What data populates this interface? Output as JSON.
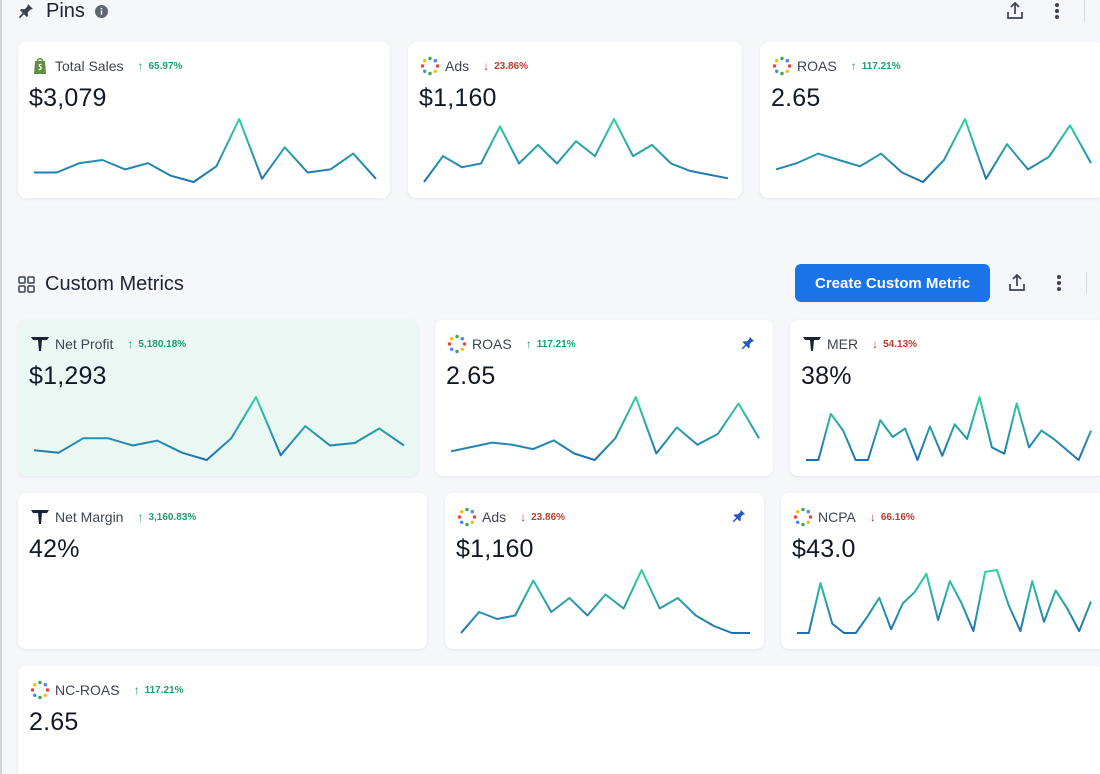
{
  "colors": {
    "accent": "#1a73e8",
    "up": "#1f9d72",
    "down": "#c0392b",
    "spark_start": "#1f6fb2",
    "spark_end": "#2fd4a0"
  },
  "pins_section": {
    "title": "Pins",
    "title_icon": "pin-icon",
    "info_icon": "info-icon",
    "toolbar": {
      "share_icon": "share-icon",
      "more_icon": "more-vertical-icon"
    }
  },
  "custom_section": {
    "title": "Custom Metrics",
    "title_icon": "grid-icon",
    "create_button": "Create Custom Metric",
    "toolbar": {
      "share_icon": "share-icon",
      "more_icon": "more-vertical-icon"
    }
  },
  "pins": [
    {
      "label": "Total Sales",
      "icon": "shopify-icon",
      "change": "65.97%",
      "direction": "up",
      "value": "$3,079",
      "trend": [
        5,
        5,
        8,
        9,
        6,
        8,
        4,
        2,
        7,
        22,
        3,
        13,
        5,
        6,
        11,
        3
      ]
    },
    {
      "label": "Ads",
      "icon": "dots-spinner-icon",
      "change": "23.86%",
      "direction": "down",
      "value": "$1,160",
      "trend": [
        6,
        13,
        10,
        11,
        21,
        11,
        16,
        11,
        17,
        13,
        23,
        13,
        16,
        11,
        9,
        8,
        7
      ]
    },
    {
      "label": "ROAS",
      "icon": "dots-spinner-icon",
      "change": "117.21%",
      "direction": "up",
      "value": "2.65",
      "trend": [
        5,
        7,
        10,
        8,
        6,
        10,
        4,
        1,
        8,
        21,
        2,
        13,
        5,
        9,
        19,
        7
      ]
    }
  ],
  "custom_metrics": [
    {
      "label": "Net Profit",
      "icon": "triple-whale-icon",
      "change": "5,180.18%",
      "direction": "up",
      "value": "$1,293",
      "pinned": false,
      "highlight": true,
      "trend": [
        8,
        7,
        13,
        13,
        10,
        12,
        7,
        4,
        13,
        30,
        6,
        18,
        10,
        11,
        17,
        10
      ]
    },
    {
      "label": "ROAS",
      "icon": "dots-spinner-icon",
      "change": "117.21%",
      "direction": "up",
      "value": "2.65",
      "pinned": true,
      "highlight": false,
      "trend": [
        6,
        8,
        10,
        9,
        7,
        11,
        5,
        2,
        12,
        31,
        5,
        17,
        9,
        14,
        28,
        12
      ]
    },
    {
      "label": "MER",
      "icon": "triple-whale-icon",
      "change": "54.13%",
      "direction": "down",
      "value": "38%",
      "pinned": false,
      "highlight": false,
      "trend": [
        3,
        3,
        25,
        17,
        3,
        3,
        22,
        14,
        18,
        3,
        19,
        5,
        20,
        13,
        33,
        9,
        6,
        30,
        9,
        17,
        13,
        8,
        3,
        17
      ]
    },
    {
      "label": "Net Margin",
      "icon": "triple-whale-icon",
      "change": "3,160.83%",
      "direction": "up",
      "value": "42%",
      "pinned": false,
      "highlight": false,
      "trend": []
    },
    {
      "label": "Ads",
      "icon": "dots-spinner-icon",
      "change": "23.86%",
      "direction": "down",
      "value": "$1,160",
      "pinned": true,
      "highlight": false,
      "trend": [
        5,
        11,
        9,
        10,
        20,
        11,
        15,
        10,
        16,
        12,
        23,
        12,
        15,
        10,
        7,
        5,
        5
      ]
    },
    {
      "label": "NCPA",
      "icon": "dots-spinner-icon",
      "change": "66.16%",
      "direction": "down",
      "value": "$43.0",
      "pinned": false,
      "highlight": false,
      "trend": [
        3,
        3,
        30,
        8,
        3,
        3,
        12,
        22,
        5,
        19,
        25,
        35,
        10,
        31,
        19,
        4,
        36,
        37,
        18,
        4,
        31,
        9,
        26,
        16,
        4,
        20
      ]
    },
    {
      "label": "NC-ROAS",
      "icon": "dots-spinner-icon",
      "change": "117.21%",
      "direction": "up",
      "value": "2.65",
      "pinned": false,
      "highlight": false,
      "trend": []
    }
  ]
}
